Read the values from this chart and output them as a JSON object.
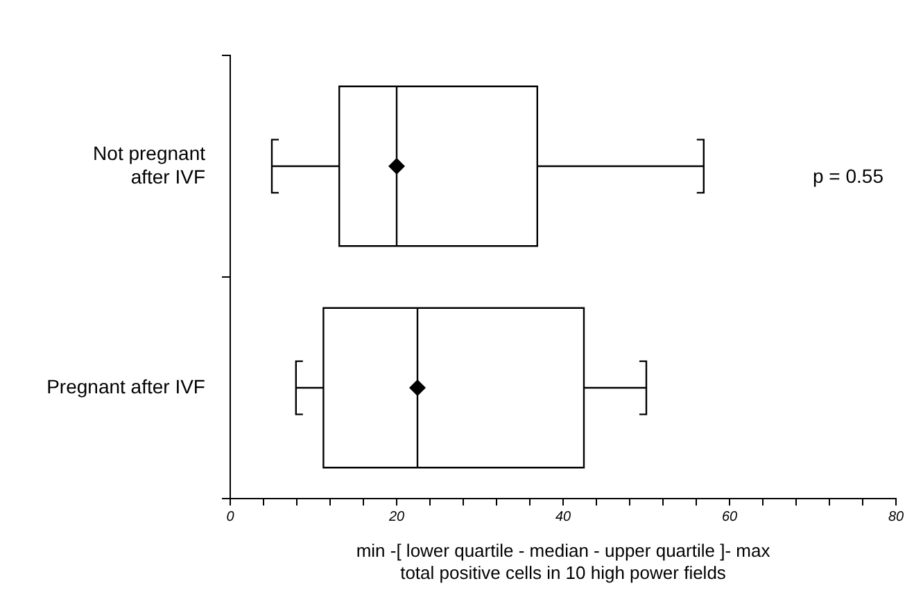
{
  "chart_data": {
    "type": "box",
    "orientation": "horizontal",
    "categories": [
      "Not pregnant\nafter IVF",
      "Pregnant after IVF"
    ],
    "boxes": [
      {
        "low": 5,
        "q1": 13.1,
        "median": 20,
        "q3": 36.9,
        "high": 56.9,
        "mean": 20
      },
      {
        "low": 7.9,
        "q1": 11.2,
        "median": 22.5,
        "q3": 42.5,
        "high": 50,
        "mean": 22.5
      }
    ],
    "xlabel": "min -[ lower quartile - median - upper quartile ]- max\ntotal positive cells in 10 high power fields",
    "xlim": [
      0,
      80
    ],
    "xticks": [
      0,
      {
        "value": 4,
        "label": null
      },
      {
        "value": 8,
        "label": null
      },
      {
        "value": 12,
        "label": null
      },
      {
        "value": 16,
        "label": null
      },
      20,
      {
        "value": 24,
        "label": null
      },
      {
        "value": 28,
        "label": null
      },
      {
        "value": 32,
        "label": null
      },
      {
        "value": 36,
        "label": null
      },
      40,
      {
        "value": 44,
        "label": null
      },
      {
        "value": 48,
        "label": null
      },
      {
        "value": 52,
        "label": null
      },
      {
        "value": 56,
        "label": null
      },
      60,
      {
        "value": 64,
        "label": null
      },
      {
        "value": 68,
        "label": null
      },
      {
        "value": 72,
        "label": null
      },
      {
        "value": 76,
        "label": null
      },
      80
    ],
    "marker": "diamond",
    "annotations": [
      "p = 0.55"
    ],
    "grid": false,
    "legend": false
  }
}
